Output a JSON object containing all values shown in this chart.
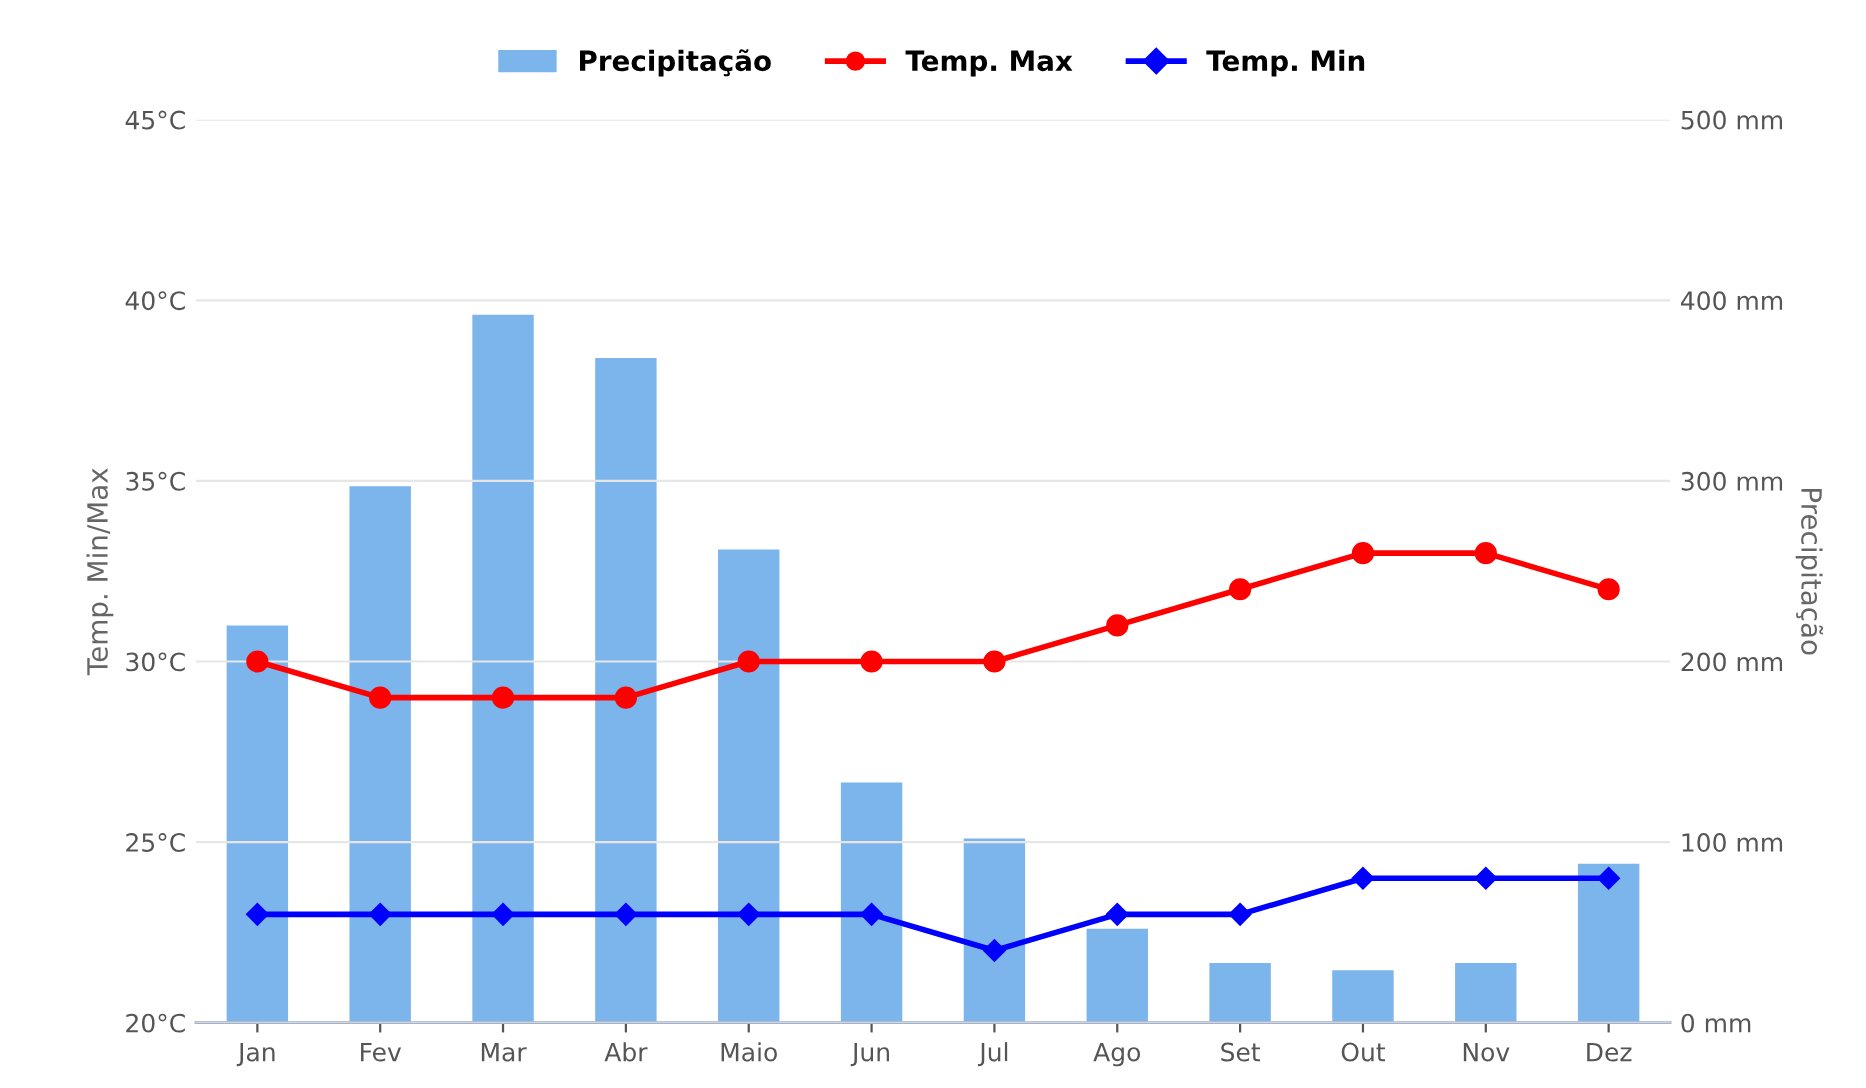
{
  "chart_data": {
    "type": "bar",
    "categories": [
      "Jan",
      "Fev",
      "Mar",
      "Abr",
      "Maio",
      "Jun",
      "Jul",
      "Ago",
      "Set",
      "Out",
      "Nov",
      "Dez"
    ],
    "series": [
      {
        "name": "Precipitação",
        "axis": "y2",
        "color": "#7cb5ec",
        "values": [
          220,
          297,
          392,
          368,
          262,
          133,
          102,
          52,
          33,
          29,
          33,
          88
        ]
      },
      {
        "name": "Temp. Max",
        "type": "line",
        "marker": "circle",
        "color": "#ff0000",
        "values": [
          30,
          29,
          29,
          29,
          30,
          30,
          30,
          31,
          32,
          33,
          33,
          32
        ]
      },
      {
        "name": "Temp. Min",
        "type": "line",
        "marker": "diamond",
        "color": "#0000ff",
        "values": [
          23,
          23,
          23,
          23,
          23,
          23,
          22,
          23,
          23,
          24,
          24,
          24
        ]
      }
    ],
    "ylabel": "Temp. Min/Max",
    "y2label": "Precipitação",
    "ylim": [
      20,
      45
    ],
    "yticks": [
      {
        "value": 20,
        "label": "20°C"
      },
      {
        "value": 25,
        "label": "25°C"
      },
      {
        "value": 30,
        "label": "30°C"
      },
      {
        "value": 35,
        "label": "35°C"
      },
      {
        "value": 40,
        "label": "40°C"
      },
      {
        "value": 45,
        "label": "45°C"
      }
    ],
    "y2lim": [
      0,
      500
    ],
    "y2ticks": [
      {
        "value": 0,
        "label": "0 mm"
      },
      {
        "value": 100,
        "label": "100 mm"
      },
      {
        "value": 200,
        "label": "200 mm"
      },
      {
        "value": 300,
        "label": "300 mm"
      },
      {
        "value": 400,
        "label": "400 mm"
      },
      {
        "value": 500,
        "label": "500 mm"
      }
    ],
    "grid": "y",
    "legend": "top",
    "line_style": "solid"
  }
}
